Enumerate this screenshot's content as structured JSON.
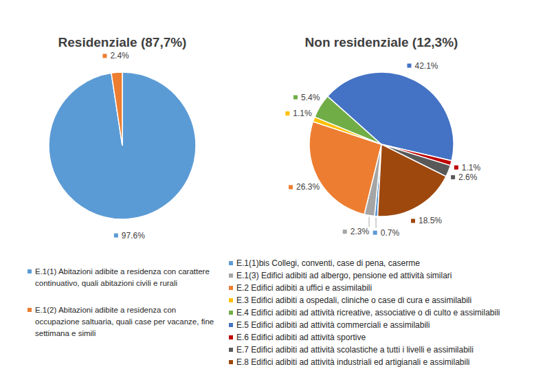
{
  "chart_data": [
    {
      "type": "pie",
      "title": "Residenziale (87,7%)",
      "categories": [
        "E.1(1) Abitazioni adibite a residenza con carattere continuativo, quali abitazioni civili e rurali",
        "E.1(2) Abitazioni adibite a residenza con occupazione saltuaria, quali case per vacanze, fine settimana e simili"
      ],
      "values": [
        97.6,
        2.4
      ],
      "value_labels": [
        "97.6%",
        "2.4%"
      ],
      "colors": [
        "#5b9bd5",
        "#ed7d31"
      ],
      "data_labels": true
    },
    {
      "type": "pie",
      "title": "Non residenziale (12,3%)",
      "categories": [
        "E.1(1)bis Collegi, conventi, case di pena, caserme",
        "E.1(3) Edifici adibiti ad albergo, pensione ed attività similari",
        "E.2 Edifici adibiti a uffici e assimilabili",
        "E.3 Edifici adibiti a ospedali, cliniche o case di cura e assimilabili",
        "E.4 Edifici adibiti ad attività ricreative, associative o di culto e assimilabili",
        "E.5 Edifici adibiti ad attività commerciali e assimilabili",
        "E.6 Edifici adibiti ad attività sportive",
        "E.7 Edifici adibiti ad attività scolastiche a tutti i livelli e assimilabili",
        "E.8 Edifici adibiti ad attività industriali ed artigianali e assimilabili"
      ],
      "values": [
        0.7,
        2.3,
        26.3,
        1.1,
        5.4,
        42.1,
        1.1,
        2.6,
        18.5
      ],
      "value_labels": [
        "0.7%",
        "2.3%",
        "26.3%",
        "1.1%",
        "5.4%",
        "42.1%",
        "1.1%",
        "2.6%",
        "18.5%"
      ],
      "colors": [
        "#5b9bd5",
        "#a5a5a5",
        "#ed7d31",
        "#ffc000",
        "#70ad47",
        "#4472c4",
        "#c00000",
        "#595959",
        "#9e480e"
      ],
      "data_labels": true
    }
  ]
}
